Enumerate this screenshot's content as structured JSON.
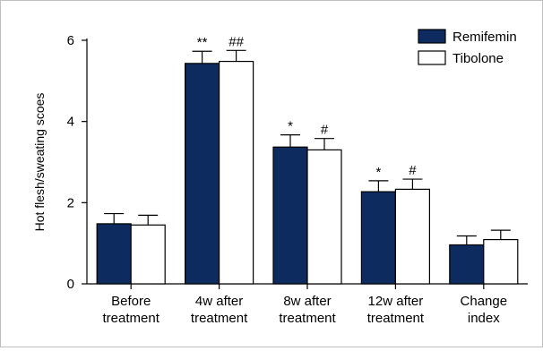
{
  "chart_data": {
    "type": "bar",
    "ylabel": "Hot flesh/sweating scoes",
    "ylim": [
      0,
      6
    ],
    "yticks": [
      0,
      2,
      4,
      6
    ],
    "categories": [
      [
        "Before",
        "treatment"
      ],
      [
        "4w after",
        "treatment"
      ],
      [
        "8w after",
        "treatment"
      ],
      [
        "12w after",
        "treatment"
      ],
      [
        "Change",
        "index"
      ]
    ],
    "series": [
      {
        "name": "Remifemin",
        "color": "#0d2b5e",
        "values": [
          1.48,
          5.43,
          3.37,
          2.27,
          0.96
        ],
        "errors": [
          0.25,
          0.3,
          0.3,
          0.27,
          0.22
        ],
        "annotations": [
          "",
          "**",
          "*",
          "*",
          ""
        ]
      },
      {
        "name": "Tibolone",
        "color": "#ffffff",
        "values": [
          1.45,
          5.48,
          3.3,
          2.33,
          1.09
        ],
        "errors": [
          0.24,
          0.27,
          0.28,
          0.25,
          0.23
        ],
        "annotations": [
          "",
          "##",
          "#",
          "#",
          ""
        ]
      }
    ],
    "grid": false,
    "legend": "top-right"
  }
}
